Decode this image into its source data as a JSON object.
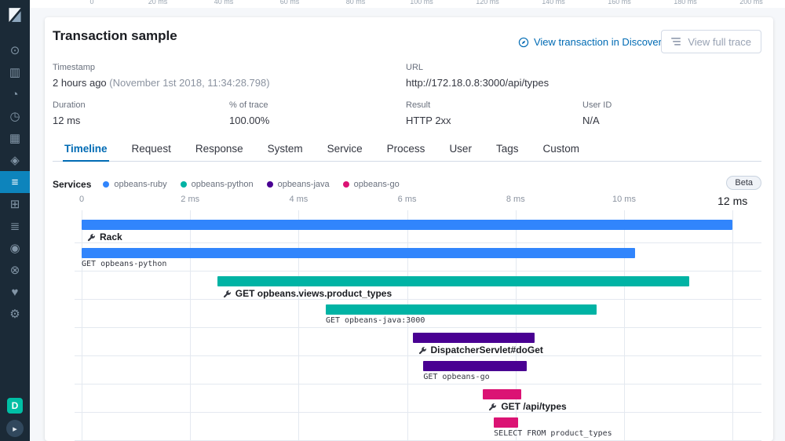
{
  "top_ruler": {
    "ticks": [
      "0",
      "20 ms",
      "40 ms",
      "60 ms",
      "80 ms",
      "100 ms",
      "120 ms",
      "140 ms",
      "160 ms",
      "180 ms",
      "200 ms"
    ]
  },
  "sidebar": {
    "items": [
      {
        "name": "discover",
        "glyph": "⊙"
      },
      {
        "name": "visualize",
        "glyph": "▥"
      },
      {
        "name": "dashboard",
        "glyph": "◔"
      },
      {
        "name": "timelion",
        "glyph": "◷"
      },
      {
        "name": "canvas",
        "glyph": "▦"
      },
      {
        "name": "maps",
        "glyph": "◈"
      },
      {
        "name": "apm",
        "glyph": "≡",
        "selected": true
      },
      {
        "name": "infrastructure",
        "glyph": "⊞"
      },
      {
        "name": "logs",
        "glyph": "≣"
      },
      {
        "name": "graph",
        "glyph": "◉"
      },
      {
        "name": "dev-tools",
        "glyph": "⊗"
      },
      {
        "name": "monitoring",
        "glyph": "♥"
      },
      {
        "name": "management",
        "glyph": "⚙"
      }
    ],
    "space_badge": "D",
    "collapse_glyph": "▸"
  },
  "header": {
    "title": "Transaction sample",
    "discover_link": "View transaction in Discover",
    "full_trace_button": "View full trace"
  },
  "fields": {
    "rows": [
      [
        {
          "label": "Timestamp",
          "value": "2 hours ago",
          "detail": "(November 1st 2018, 11:34:28.798)"
        },
        {
          "label": "URL",
          "value": "http://172.18.0.8:3000/api/types"
        }
      ],
      [
        {
          "label": "Duration",
          "value": "12 ms"
        },
        {
          "label": "% of trace",
          "value": "100.00%"
        },
        {
          "label": "Result",
          "value": "HTTP 2xx"
        },
        {
          "label": "User ID",
          "value": "N/A"
        }
      ]
    ]
  },
  "tabs": {
    "selected_index": 0,
    "items": [
      "Timeline",
      "Request",
      "Response",
      "System",
      "Service",
      "Process",
      "User",
      "Tags",
      "Custom"
    ]
  },
  "legend": {
    "title": "Services",
    "items": [
      {
        "label": "opbeans-ruby",
        "color": "#3185fc"
      },
      {
        "label": "opbeans-python",
        "color": "#00b3a4"
      },
      {
        "label": "opbeans-java",
        "color": "#490092"
      },
      {
        "label": "opbeans-go",
        "color": "#db1374"
      }
    ]
  },
  "beta_badge": "Beta",
  "chart_data": {
    "type": "waterfall",
    "title": "Transaction sample timeline",
    "unit": "ms",
    "total_ms": 12,
    "axis_ticks": [
      {
        "ms": 0,
        "label": "0"
      },
      {
        "ms": 2,
        "label": "2 ms"
      },
      {
        "ms": 4,
        "label": "4 ms"
      },
      {
        "ms": 6,
        "label": "6 ms"
      },
      {
        "ms": 8,
        "label": "8 ms"
      },
      {
        "ms": 10,
        "label": "10 ms"
      },
      {
        "ms": 12,
        "label": "12 ms",
        "major": true
      }
    ],
    "spans": [
      {
        "name": "Rack",
        "kind": "transaction",
        "service": "opbeans-ruby",
        "color": "#3185fc",
        "start_ms": 0,
        "duration_ms": 12
      },
      {
        "name": "GET opbeans-python",
        "kind": "span",
        "service": "opbeans-ruby",
        "color": "#3185fc",
        "start_ms": 0,
        "duration_ms": 10.2
      },
      {
        "name": "GET opbeans.views.product_types",
        "kind": "transaction",
        "service": "opbeans-python",
        "color": "#00b3a4",
        "start_ms": 2.5,
        "duration_ms": 8.7
      },
      {
        "name": "GET opbeans-java:3000",
        "kind": "span",
        "service": "opbeans-python",
        "color": "#00b3a4",
        "start_ms": 4.5,
        "duration_ms": 5.0
      },
      {
        "name": "DispatcherServlet#doGet",
        "kind": "transaction",
        "service": "opbeans-java",
        "color": "#490092",
        "start_ms": 6.1,
        "duration_ms": 2.25
      },
      {
        "name": "GET opbeans-go",
        "kind": "span",
        "service": "opbeans-java",
        "color": "#490092",
        "start_ms": 6.3,
        "duration_ms": 1.9
      },
      {
        "name": "GET /api/types",
        "kind": "transaction",
        "service": "opbeans-go",
        "color": "#db1374",
        "start_ms": 7.4,
        "duration_ms": 0.7
      },
      {
        "name": "SELECT FROM product_types",
        "kind": "span",
        "service": "opbeans-go",
        "color": "#db1374",
        "start_ms": 7.6,
        "duration_ms": 0.45
      }
    ]
  }
}
